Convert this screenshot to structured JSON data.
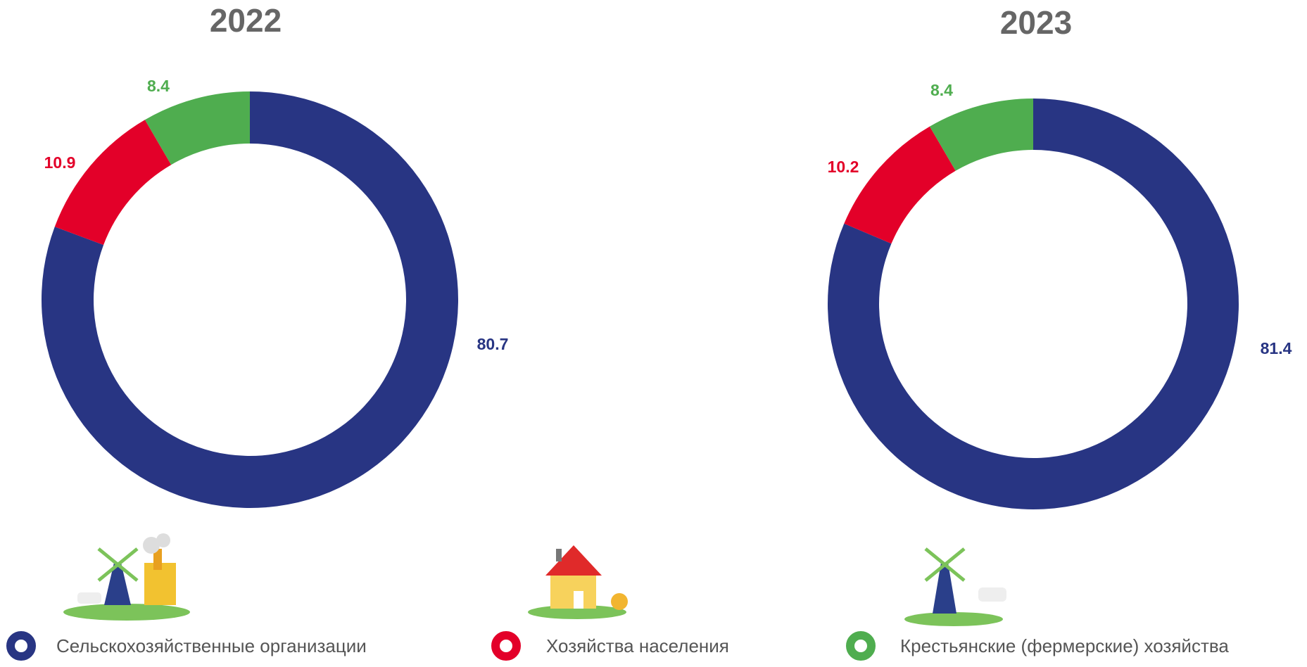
{
  "chart_data": [
    {
      "type": "pie",
      "title": "2022",
      "categories": [
        "Сельскохозяйственные  организации",
        "Хозяйства населения",
        "Крестьянские (фермерские) хозяйства"
      ],
      "colors": [
        "#283583",
        "#e30029",
        "#4fad4f"
      ],
      "values": [
        80.7,
        10.9,
        8.4
      ]
    },
    {
      "type": "pie",
      "title": "2023",
      "values": [
        81.4,
        10.2,
        8.4
      ]
    }
  ]
}
